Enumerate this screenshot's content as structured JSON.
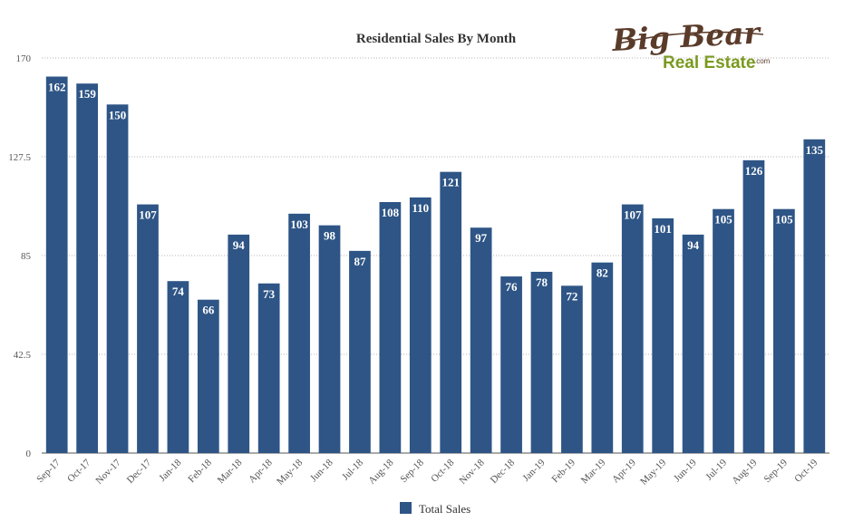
{
  "logo": {
    "line1": "Big Bear",
    "line2": "Real Estate",
    "suffix": ".com"
  },
  "colors": {
    "bar": "#2e5586",
    "grid": "#b5b5b5",
    "axis": "#555555"
  },
  "chart_data": {
    "type": "bar",
    "title": "Residential Sales By Month",
    "xlabel": "",
    "ylabel": "",
    "ylim": [
      0,
      170
    ],
    "yticks": [
      0,
      42.5,
      85,
      127.5,
      170
    ],
    "ytick_labels": [
      "0",
      "42.5",
      "85",
      "127.5",
      "170"
    ],
    "grid": true,
    "legend_position": "bottom",
    "categories": [
      "Sep-17",
      "Oct-17",
      "Nov-17",
      "Dec-17",
      "Jan-18",
      "Feb-18",
      "Mar-18",
      "Apr-18",
      "May-18",
      "Jun-18",
      "Jul-18",
      "Aug-18",
      "Sep-18",
      "Oct-18",
      "Nov-18",
      "Dec-18",
      "Jan-19",
      "Feb-19",
      "Mar-19",
      "Apr-19",
      "May-19",
      "Jun-19",
      "Jul-19",
      "Aug-19",
      "Sep-19",
      "Oct-19"
    ],
    "series": [
      {
        "name": "Total Sales",
        "values": [
          162,
          159,
          150,
          107,
          74,
          66,
          94,
          73,
          103,
          98,
          87,
          108,
          110,
          121,
          97,
          76,
          78,
          72,
          82,
          107,
          101,
          94,
          105,
          126,
          105,
          135
        ]
      }
    ]
  }
}
